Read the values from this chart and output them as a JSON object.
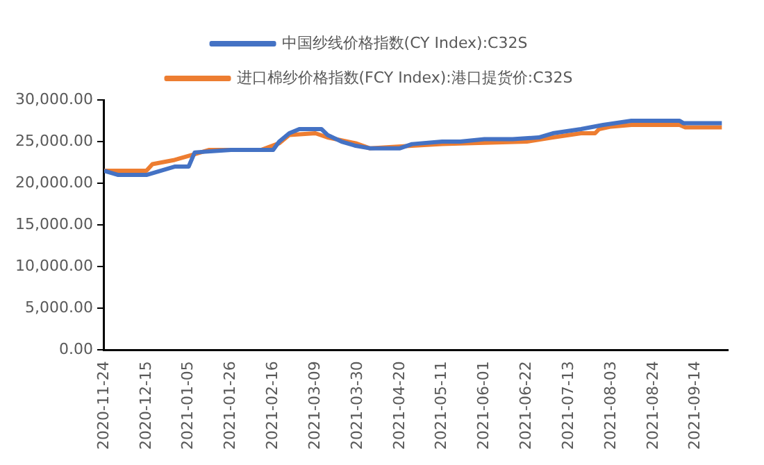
{
  "chart_data": {
    "type": "line",
    "legend": "top",
    "grid": false,
    "marker": "none",
    "line_style": "solid",
    "xlim": [
      "2020-11-24",
      "2021-09-30"
    ],
    "xticks": [
      "2020-11-24",
      "2020-12-15",
      "2021-01-05",
      "2021-01-26",
      "2021-02-16",
      "2021-03-09",
      "2021-03-30",
      "2021-04-20",
      "2021-05-11",
      "2021-06-01",
      "2021-06-22",
      "2021-07-13",
      "2021-08-03",
      "2021-08-24",
      "2021-09-14"
    ],
    "ylim": [
      0,
      30000
    ],
    "yticks": [
      {
        "value": 0,
        "label": "0.00"
      },
      {
        "value": 5000,
        "label": "5,000.00"
      },
      {
        "value": 10000,
        "label": "10,000.00"
      },
      {
        "value": 15000,
        "label": "15,000.00"
      },
      {
        "value": 20000,
        "label": "20,000.00"
      },
      {
        "value": 25000,
        "label": "25,000.00"
      },
      {
        "value": 30000,
        "label": "30,000.00"
      }
    ],
    "series": [
      {
        "name": "中国纱线价格指数(CY Index):C32S",
        "color": "#4472c4",
        "x": [
          "2020-11-24",
          "2020-12-01",
          "2020-12-15",
          "2020-12-22",
          "2020-12-29",
          "2021-01-05",
          "2021-01-08",
          "2021-01-26",
          "2021-02-16",
          "2021-02-19",
          "2021-02-24",
          "2021-03-01",
          "2021-03-12",
          "2021-03-15",
          "2021-03-22",
          "2021-03-29",
          "2021-04-05",
          "2021-04-20",
          "2021-04-26",
          "2021-05-11",
          "2021-05-20",
          "2021-06-01",
          "2021-06-15",
          "2021-06-28",
          "2021-07-05",
          "2021-07-19",
          "2021-07-30",
          "2021-08-13",
          "2021-09-06",
          "2021-09-08",
          "2021-09-27"
        ],
        "values": [
          21500,
          21000,
          21000,
          21500,
          22000,
          22000,
          23700,
          24000,
          24000,
          25000,
          26000,
          26500,
          26500,
          25800,
          25000,
          24500,
          24200,
          24200,
          24700,
          25000,
          25000,
          25300,
          25300,
          25500,
          26000,
          26500,
          27000,
          27500,
          27500,
          27200,
          27200
        ]
      },
      {
        "name": "进口棉纱价格指数(FCY Index):港口提货价:C32S",
        "color": "#ed7d31",
        "x": [
          "2020-11-24",
          "2020-12-15",
          "2020-12-18",
          "2020-12-29",
          "2021-01-08",
          "2021-01-15",
          "2021-02-10",
          "2021-02-19",
          "2021-02-24",
          "2021-03-09",
          "2021-03-15",
          "2021-03-29",
          "2021-04-05",
          "2021-04-26",
          "2021-05-11",
          "2021-06-22",
          "2021-07-05",
          "2021-07-19",
          "2021-07-26",
          "2021-07-28",
          "2021-08-03",
          "2021-08-13",
          "2021-09-06",
          "2021-09-09",
          "2021-09-27"
        ],
        "values": [
          21500,
          21500,
          22300,
          22800,
          23500,
          24000,
          24000,
          24800,
          25800,
          26000,
          25500,
          24800,
          24200,
          24500,
          24700,
          25000,
          25500,
          26000,
          26000,
          26500,
          26800,
          27000,
          27000,
          26700,
          26700
        ]
      }
    ]
  }
}
